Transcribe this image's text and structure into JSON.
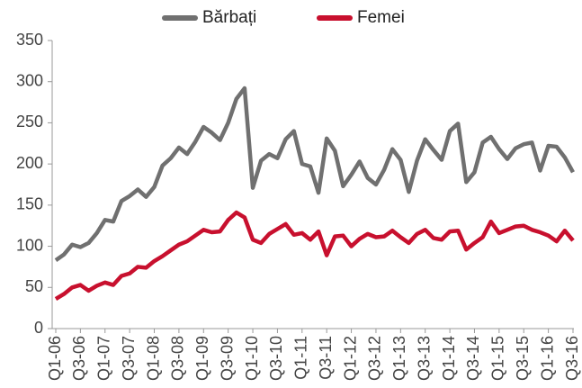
{
  "chart_data": {
    "type": "line",
    "categories": [
      "Q1-06",
      null,
      null,
      "Q3-06",
      null,
      null,
      "Q1-07",
      null,
      null,
      "Q3-07",
      null,
      null,
      "Q1-08",
      null,
      null,
      "Q3-08",
      null,
      null,
      "Q1-09",
      null,
      null,
      "Q3-09",
      null,
      null,
      "Q1-10",
      null,
      null,
      "Q3-10",
      null,
      null,
      "Q1-11",
      null,
      null,
      "Q3-11",
      null,
      null,
      "Q1-12",
      null,
      null,
      "Q3-12",
      null,
      null,
      "Q1-13",
      null,
      null,
      "Q3-13",
      null,
      null,
      "Q1-14",
      null,
      null,
      "Q3-14",
      null,
      null,
      "Q1-15",
      null,
      null,
      "Q3-15",
      null,
      null,
      "Q1-16",
      null,
      null,
      "Q3-16"
    ],
    "series": [
      {
        "name": "Bărbați",
        "color": "#707070",
        "values": [
          83,
          90,
          102,
          99,
          104,
          116,
          132,
          130,
          155,
          161,
          169,
          160,
          172,
          198,
          207,
          220,
          212,
          227,
          245,
          238,
          229,
          250,
          279,
          292,
          171,
          204,
          212,
          207,
          230,
          240,
          200,
          197,
          165,
          231,
          216,
          173,
          187,
          203,
          183,
          175,
          193,
          218,
          205,
          166,
          204,
          230,
          217,
          205,
          240,
          249,
          178,
          190,
          226,
          233,
          218,
          206,
          219,
          224,
          226,
          192,
          222,
          221,
          208,
          190
        ]
      },
      {
        "name": "Femei",
        "color": "#c8102e",
        "values": [
          36,
          42,
          50,
          53,
          46,
          52,
          56,
          53,
          64,
          67,
          75,
          74,
          82,
          88,
          95,
          102,
          106,
          113,
          120,
          117,
          118,
          132,
          141,
          135,
          108,
          104,
          115,
          121,
          127,
          114,
          116,
          108,
          118,
          89,
          112,
          113,
          100,
          109,
          115,
          111,
          112,
          119,
          111,
          104,
          115,
          120,
          110,
          108,
          118,
          119,
          96,
          104,
          111,
          130,
          116,
          120,
          124,
          125,
          120,
          117,
          113,
          106,
          119,
          107
        ]
      }
    ],
    "ylim": [
      0,
      350
    ],
    "yticks": [
      0,
      50,
      100,
      150,
      200,
      250,
      300,
      350
    ],
    "legend": "top"
  }
}
